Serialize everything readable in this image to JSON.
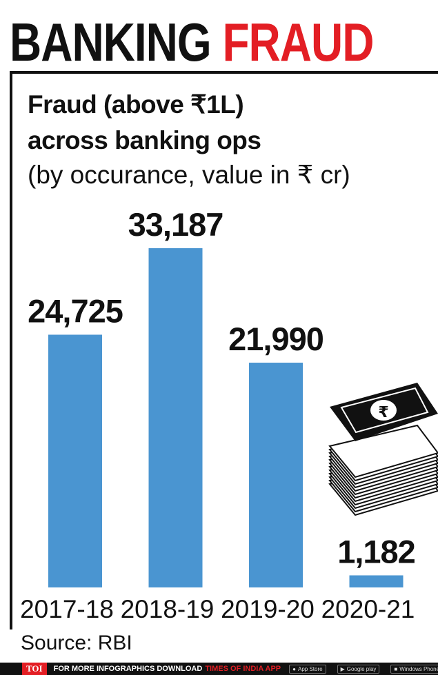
{
  "headline": {
    "part1": "BANKING",
    "part2": "FRAUD"
  },
  "subtitle": {
    "line1": "Fraud (above ₹1L)",
    "line2": "across banking ops",
    "line3": "(by occurance, value in ₹ cr)"
  },
  "source": "Source: RBI",
  "footer": {
    "brand": "TOI",
    "text": "FOR MORE  INFOGRAPHICS DOWNLOAD",
    "app": "TIMES OF INDIA  APP",
    "badges": [
      "App Store",
      "Google play",
      "Windows Phone"
    ]
  },
  "colors": {
    "bar": "#4a95d1",
    "accent": "#e31e24",
    "text": "#111111"
  },
  "icons": {
    "decoration": "cash-stack-icon"
  },
  "chart_data": {
    "type": "bar",
    "title": "Fraud (above ₹1L) across banking ops",
    "subtitle": "(by occurance, value in ₹ cr)",
    "categories": [
      "2017-18",
      "2018-19",
      "2019-20",
      "2020-21"
    ],
    "values": [
      24725,
      33187,
      21990,
      1182
    ],
    "value_labels": [
      "24,725",
      "33,187",
      "21,990",
      "1,182"
    ],
    "ylim": [
      0,
      33187
    ],
    "grid": false,
    "legend": "none"
  }
}
